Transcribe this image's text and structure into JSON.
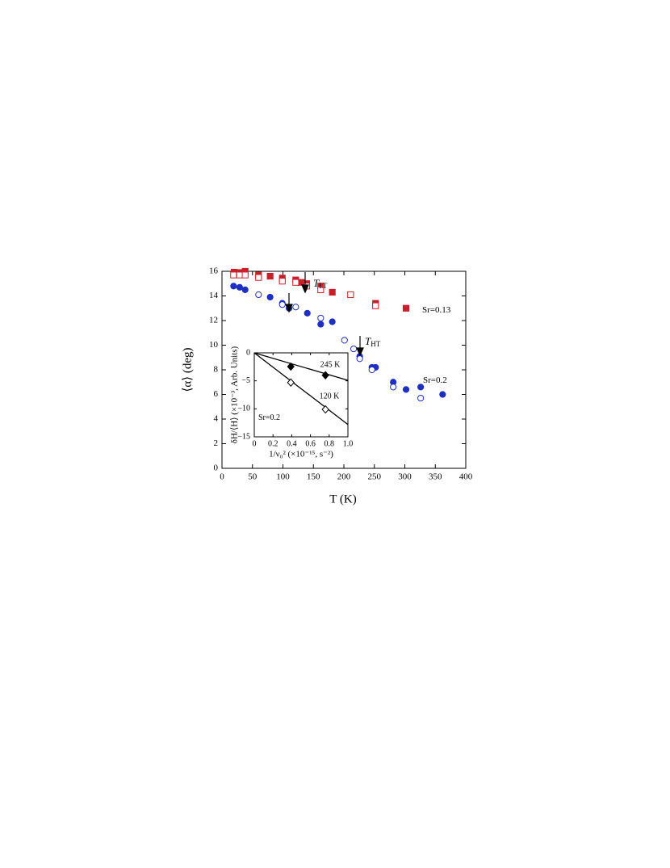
{
  "chart_data": [
    {
      "type": "scatter",
      "x_label": "T (K)",
      "y_label": "⟨α⟩ (deg)",
      "xlim": [
        0,
        400
      ],
      "xticks": [
        0,
        50,
        100,
        150,
        200,
        250,
        300,
        350,
        400
      ],
      "ylim": [
        0,
        16
      ],
      "yticks": [
        0,
        2,
        4,
        6,
        8,
        10,
        12,
        14,
        16
      ],
      "series": [
        {
          "color": "#c8202a",
          "marker": "square",
          "filled": true,
          "x": [
            20,
            29,
            38,
            60,
            79,
            99,
            121,
            130,
            139,
            162,
            181,
            252,
            302
          ],
          "y": [
            15.93,
            15.9,
            16.0,
            15.7,
            15.6,
            15.45,
            15.3,
            15.1,
            15.0,
            14.8,
            14.3,
            13.4,
            13.0
          ]
        },
        {
          "color": "#c8202a",
          "marker": "square",
          "filled": false,
          "x": [
            19,
            29,
            38,
            60,
            99,
            121,
            139,
            162,
            211,
            252
          ],
          "y": [
            15.7,
            15.7,
            15.7,
            15.5,
            15.2,
            15.1,
            14.8,
            14.5,
            14.1,
            13.2
          ]
        },
        {
          "color": "#1f2fbf",
          "marker": "circle",
          "filled": true,
          "x": [
            19,
            29,
            38,
            79,
            99,
            110,
            140,
            162,
            181,
            226,
            246,
            252,
            281,
            302,
            326,
            362
          ],
          "y": [
            14.8,
            14.7,
            14.5,
            13.9,
            13.4,
            13.0,
            12.6,
            11.7,
            11.9,
            9.1,
            8.2,
            8.2,
            7.0,
            6.4,
            6.6,
            6.0
          ]
        },
        {
          "color": "#1f2fbf",
          "marker": "circle",
          "filled": false,
          "x": [
            60,
            99,
            121,
            162,
            201,
            216,
            226,
            246,
            281,
            326
          ],
          "y": [
            14.1,
            13.3,
            13.1,
            12.2,
            10.4,
            9.7,
            8.9,
            8.0,
            6.6,
            5.7
          ]
        }
      ],
      "annotations": [
        {
          "text": "T",
          "sub": "LT"
        },
        {
          "text": "T",
          "sub": "HT"
        },
        {
          "text": "Sr=0.13"
        },
        {
          "text": "Sr=0.2"
        }
      ]
    },
    {
      "type": "scatter",
      "x_label": "1/ν₀² (×10⁻¹⁵, s⁻²)",
      "y_label": "δH/⟨H⟩ (×10⁻³, Arb. Units)",
      "xlim": [
        0,
        1.0
      ],
      "xticks": [
        0,
        0.2,
        0.4,
        0.6,
        0.8,
        {
          "value": 1.0,
          "label": "1.0"
        }
      ],
      "ylim": [
        -15,
        0
      ],
      "yticks": [
        0,
        {
          "value": -5,
          "label": "−5"
        },
        {
          "value": -10,
          "label": "−10"
        },
        {
          "value": -15,
          "label": "−15"
        }
      ],
      "series": [
        {
          "name": "245 K",
          "color": "#000000",
          "marker": "diamond",
          "filled": true,
          "x": [
            0.39,
            0.76
          ],
          "y": [
            -2.45,
            -4.0
          ],
          "fit_x": [
            0,
            1.0
          ],
          "fit_y": [
            0,
            -4.9
          ]
        },
        {
          "name": "120 K",
          "color": "#000000",
          "marker": "diamond",
          "filled": false,
          "x": [
            0.39,
            0.76
          ],
          "y": [
            -5.3,
            -10.1
          ],
          "fit_x": [
            0,
            1.0
          ],
          "fit_y": [
            0,
            -12.8
          ]
        }
      ],
      "annotations": [
        {
          "text": "Sr=0.2"
        }
      ]
    }
  ]
}
